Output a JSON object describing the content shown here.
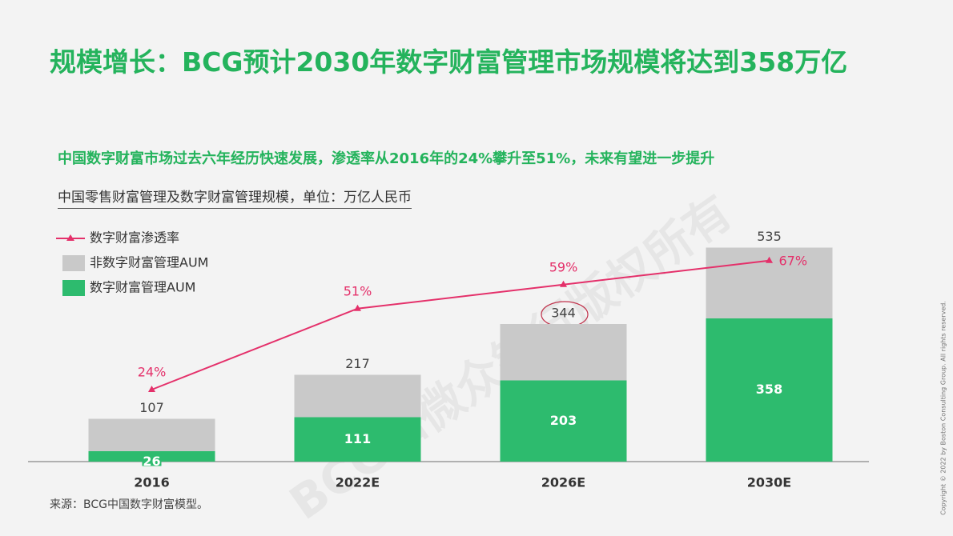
{
  "chart_data": {
    "type": "bar",
    "title": "规模增长：BCG预计2030年数字财富管理市场规模将达到358万亿",
    "subtitle": "中国数字财富市场过去六年经历快速发展，渗透率从2016年的24%攀升至51%，未来有望进一步提升",
    "unit_label": "中国零售财富管理及数字财富管理规模，单位：万亿人民币",
    "source": "来源：BCG中国数字财富模型。",
    "copyright": "Copyright © 2022 by Boston Consulting Group. All rights reserved.",
    "watermark": "BCG和微众银行版权所有",
    "categories": [
      "2016",
      "2022E",
      "2026E",
      "2030E"
    ],
    "stacked": true,
    "ylim": [
      0,
      540
    ],
    "y2lim": [
      0,
      72
    ],
    "totals": [
      107,
      217,
      344,
      535
    ],
    "series": [
      {
        "name": "数字财富渗透率",
        "type": "line",
        "axis": "y2",
        "color": "#e4306a",
        "values": [
          24,
          51,
          59,
          67
        ],
        "value_labels": [
          "24%",
          "51%",
          "59%",
          "67%"
        ]
      },
      {
        "name": "非数字财富管理AUM",
        "color": "#c9c9c9",
        "values": [
          81,
          106,
          141,
          177
        ]
      },
      {
        "name": "数字财富管理AUM",
        "color": "#2dbb6e",
        "values": [
          26,
          111,
          203,
          358
        ]
      }
    ]
  }
}
